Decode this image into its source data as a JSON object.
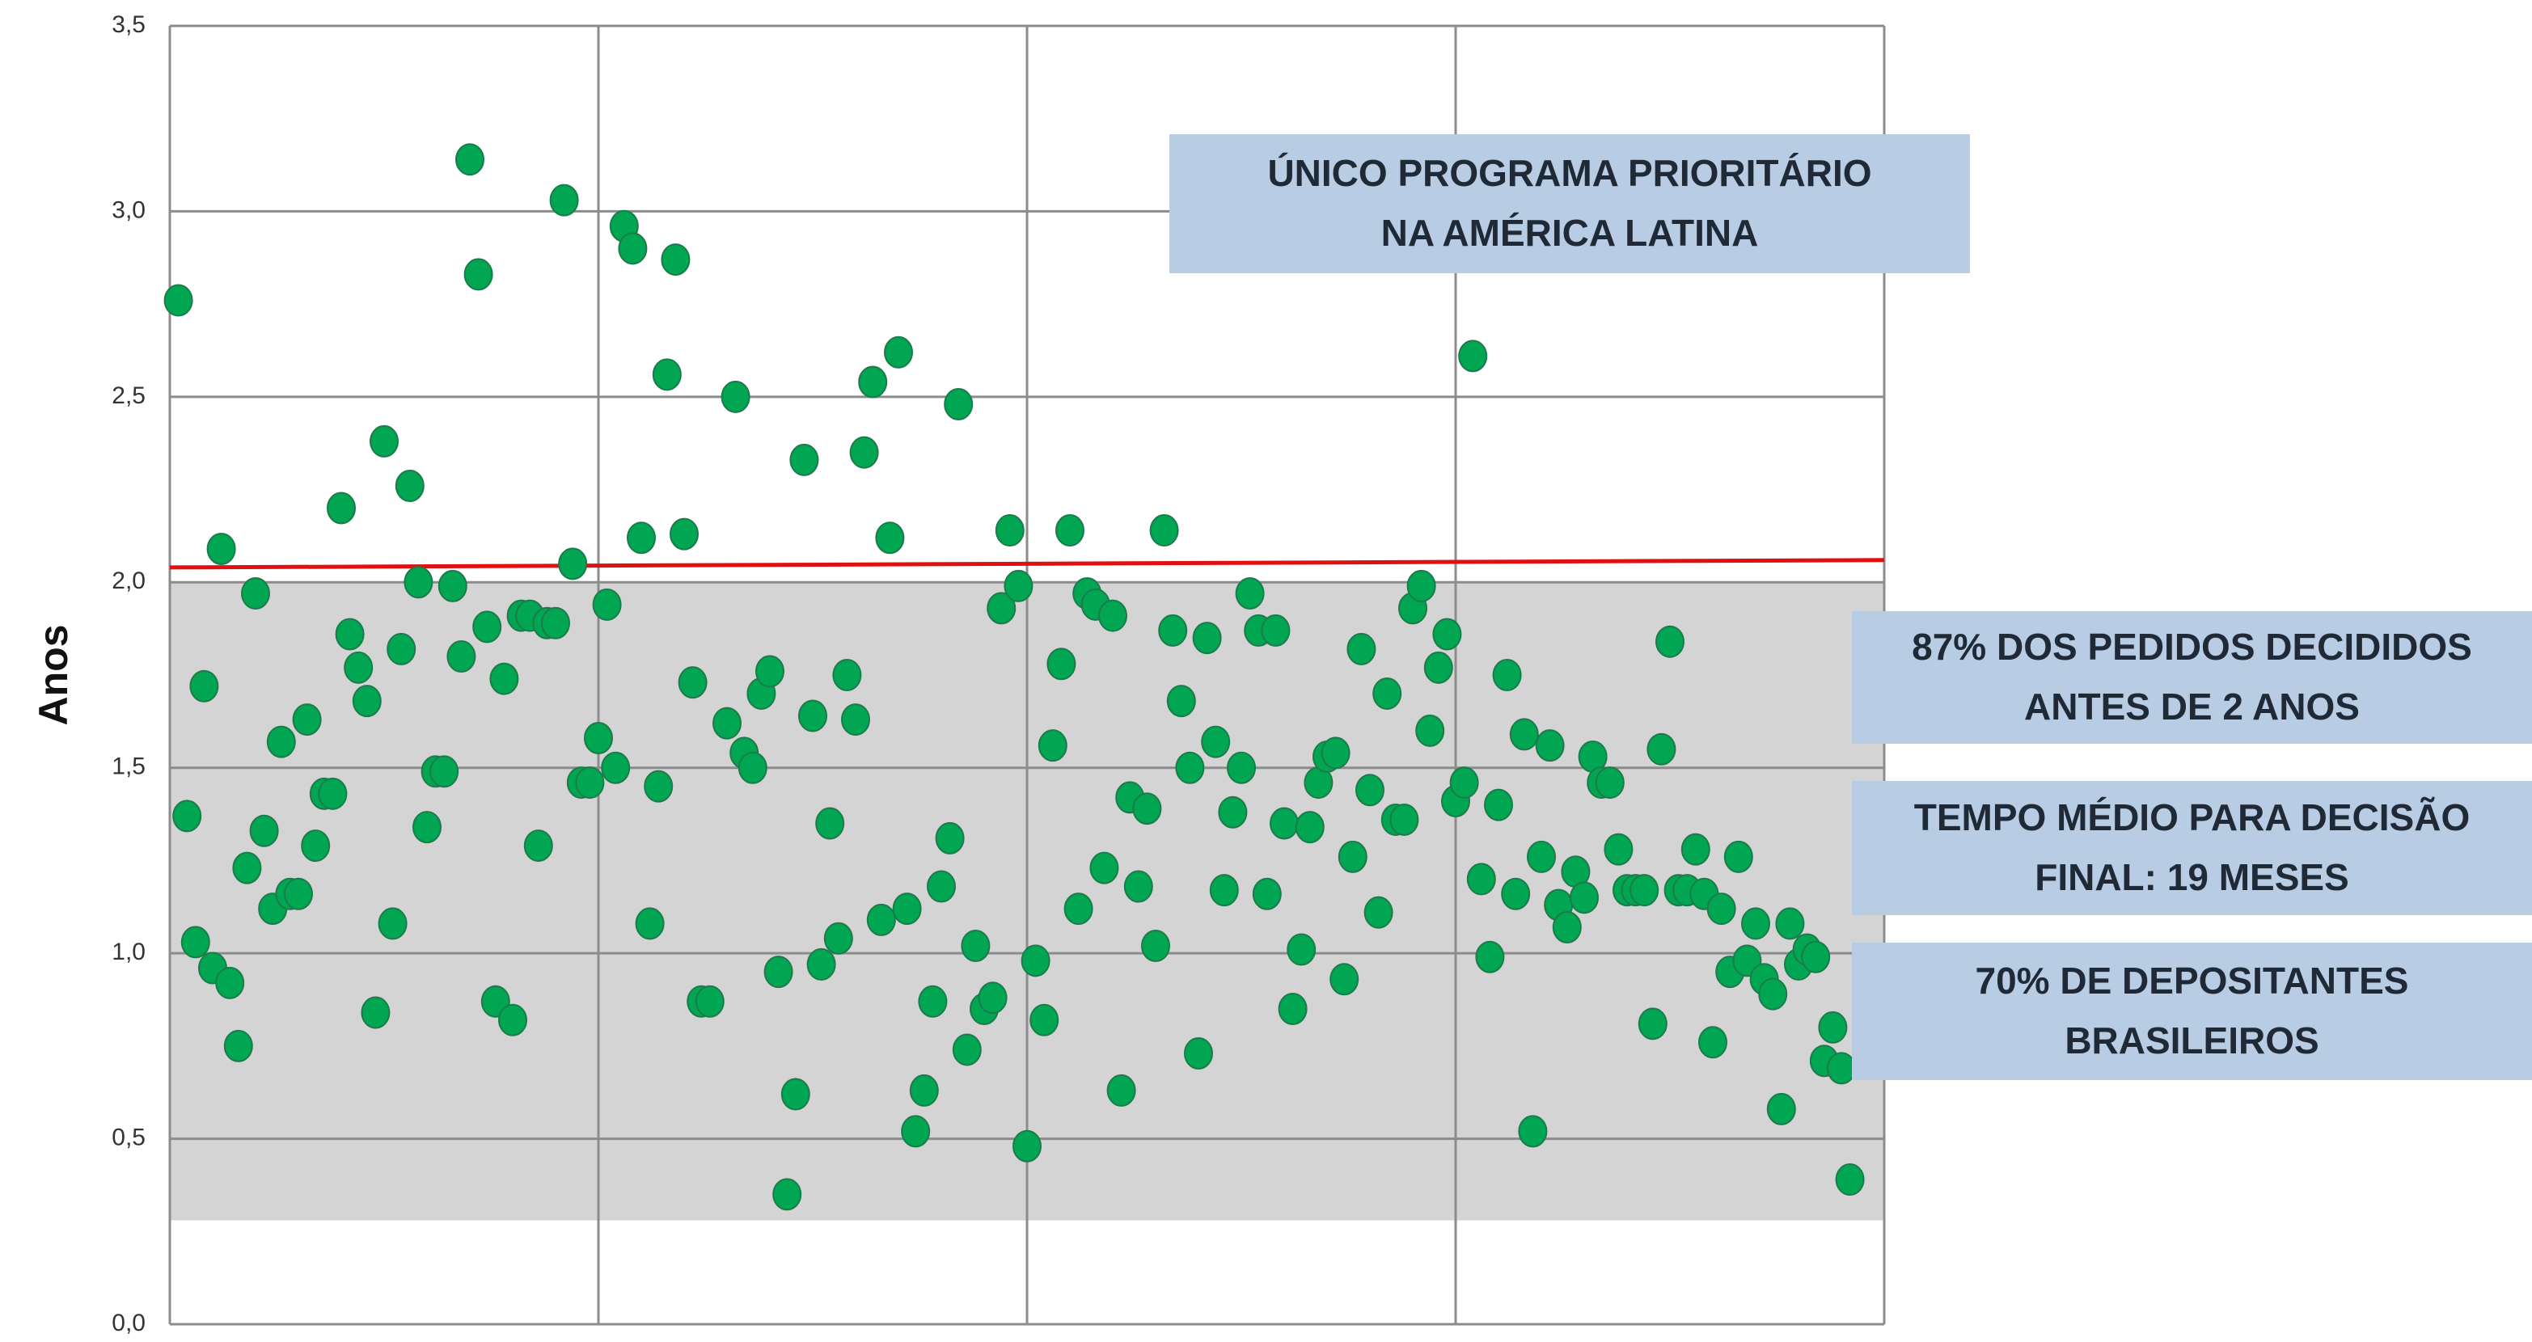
{
  "chart_data": {
    "type": "scatter",
    "y_label": "Anos",
    "ylim": [
      0,
      3.5
    ],
    "yticks": [
      {
        "value": 0,
        "label": "0,0"
      },
      {
        "value": 0.5,
        "label": "0,5"
      },
      {
        "value": 1,
        "label": "1,0"
      },
      {
        "value": 1.5,
        "label": "1,5"
      },
      {
        "value": 2,
        "label": "2,0"
      },
      {
        "value": 2.5,
        "label": "2,5"
      },
      {
        "value": 3,
        "label": "3,0"
      },
      {
        "value": 3.5,
        "label": "3,5"
      }
    ],
    "xlim": [
      0,
      4
    ],
    "xticks": [
      0,
      1,
      2,
      3,
      4
    ],
    "grid": true,
    "color": "#00a651",
    "shaded_band": {
      "color": "#d4d4d4",
      "values": [
        0.28,
        2.0
      ]
    },
    "reference_line": {
      "color": "#e01010",
      "values": [
        2.04,
        2.06
      ]
    },
    "annotations": [
      {
        "lines": [
          "ÚNICO PROGRAMA PRIORITÁRIO",
          "NA AMÉRICA LATINA"
        ]
      },
      {
        "lines": [
          "87% DOS PEDIDOS DECIDIDOS",
          "ANTES DE 2 ANOS"
        ]
      },
      {
        "lines": [
          "TEMPO MÉDIO PARA DECISÃO",
          "FINAL: 19 MESES"
        ]
      },
      {
        "lines": [
          "70% DE DEPOSITANTES",
          "BRASILEIROS"
        ]
      }
    ],
    "x": [
      0.02,
      0.04,
      0.06,
      0.08,
      0.1,
      0.12,
      0.14,
      0.16,
      0.18,
      0.2,
      0.22,
      0.24,
      0.26,
      0.28,
      0.3,
      0.32,
      0.34,
      0.36,
      0.38,
      0.4,
      0.42,
      0.44,
      0.46,
      0.48,
      0.5,
      0.52,
      0.54,
      0.56,
      0.58,
      0.6,
      0.62,
      0.64,
      0.66,
      0.68,
      0.7,
      0.72,
      0.74,
      0.76,
      0.78,
      0.8,
      0.82,
      0.84,
      0.86,
      0.88,
      0.9,
      0.92,
      0.94,
      0.96,
      0.98,
      1.0,
      1.02,
      1.04,
      1.06,
      1.08,
      1.1,
      1.12,
      1.14,
      1.16,
      1.18,
      1.2,
      1.22,
      1.24,
      1.26,
      1.3,
      1.32,
      1.34,
      1.36,
      1.38,
      1.4,
      1.42,
      1.44,
      1.46,
      1.48,
      1.5,
      1.52,
      1.54,
      1.56,
      1.58,
      1.6,
      1.62,
      1.64,
      1.66,
      1.68,
      1.7,
      1.72,
      1.74,
      1.76,
      1.78,
      1.8,
      1.82,
      1.84,
      1.86,
      1.88,
      1.9,
      1.92,
      1.94,
      1.96,
      1.98,
      2.0,
      2.02,
      2.04,
      2.06,
      2.08,
      2.1,
      2.12,
      2.14,
      2.16,
      2.18,
      2.2,
      2.22,
      2.24,
      2.26,
      2.28,
      2.3,
      2.32,
      2.34,
      2.36,
      2.38,
      2.4,
      2.42,
      2.44,
      2.46,
      2.48,
      2.5,
      2.52,
      2.54,
      2.56,
      2.58,
      2.6,
      2.62,
      2.64,
      2.66,
      2.68,
      2.7,
      2.72,
      2.74,
      2.76,
      2.78,
      2.8,
      2.82,
      2.84,
      2.86,
      2.88,
      2.9,
      2.92,
      2.94,
      2.96,
      2.98,
      3.0,
      3.02,
      3.04,
      3.06,
      3.08,
      3.1,
      3.12,
      3.14,
      3.16,
      3.18,
      3.2,
      3.22,
      3.24,
      3.26,
      3.28,
      3.3,
      3.32,
      3.34,
      3.36,
      3.38,
      3.4,
      3.42,
      3.44,
      3.46,
      3.48,
      3.5,
      3.52,
      3.54,
      3.56,
      3.58,
      3.6,
      3.62,
      3.64,
      3.66,
      3.68,
      3.7,
      3.72,
      3.74,
      3.76,
      3.78,
      3.8,
      3.82,
      3.84,
      3.86,
      3.88,
      3.9,
      3.92
    ],
    "values": [
      2.76,
      1.37,
      1.03,
      1.72,
      0.96,
      2.09,
      0.92,
      0.75,
      1.23,
      1.97,
      1.33,
      1.12,
      1.57,
      1.16,
      1.16,
      1.63,
      1.29,
      1.43,
      1.43,
      2.2,
      1.86,
      1.77,
      1.68,
      0.84,
      2.38,
      1.08,
      1.82,
      2.26,
      2.0,
      1.34,
      1.49,
      1.49,
      1.99,
      1.8,
      3.14,
      2.83,
      1.88,
      0.87,
      1.74,
      0.82,
      1.91,
      1.91,
      1.29,
      1.89,
      1.89,
      3.03,
      2.05,
      1.46,
      1.46,
      1.58,
      1.94,
      1.5,
      2.96,
      2.9,
      2.12,
      1.08,
      1.45,
      2.56,
      2.87,
      2.13,
      1.73,
      0.87,
      0.87,
      1.62,
      2.5,
      1.54,
      1.5,
      1.7,
      1.76,
      0.95,
      0.35,
      0.62,
      2.33,
      1.64,
      0.97,
      1.35,
      1.04,
      1.75,
      1.63,
      2.35,
      2.54,
      1.09,
      2.12,
      2.62,
      1.12,
      0.52,
      0.63,
      0.87,
      1.18,
      1.31,
      2.48,
      0.74,
      1.02,
      0.85,
      0.88,
      1.93,
      2.14,
      1.99,
      0.48,
      0.98,
      0.82,
      1.56,
      1.78,
      2.14,
      1.12,
      1.97,
      1.94,
      1.23,
      1.91,
      0.63,
      1.42,
      1.18,
      1.39,
      1.02,
      2.14,
      1.87,
      1.68,
      1.5,
      0.73,
      1.85,
      1.57,
      1.17,
      1.38,
      1.5,
      1.97,
      1.87,
      1.16,
      1.87,
      1.35,
      0.85,
      1.01,
      1.34,
      1.46,
      1.53,
      1.54,
      0.93,
      1.26,
      1.82,
      1.44,
      1.11,
      1.7,
      1.36,
      1.36,
      1.93,
      1.99,
      1.6,
      1.77,
      1.86,
      1.41,
      1.46,
      2.61,
      1.2,
      0.99,
      1.4,
      1.75,
      1.16,
      1.59,
      0.52,
      1.26,
      1.56,
      1.13,
      1.07,
      1.22,
      1.15,
      1.53,
      1.46,
      1.46,
      1.28,
      1.17,
      1.17,
      1.17,
      0.81,
      1.55,
      1.84,
      1.17,
      1.17,
      1.28,
      1.16,
      0.76,
      1.12,
      0.95,
      1.26,
      0.98,
      1.08,
      0.93,
      0.89,
      0.58,
      1.08,
      0.97,
      1.01,
      0.99,
      0.71,
      0.8,
      0.69,
      0.39
    ]
  }
}
